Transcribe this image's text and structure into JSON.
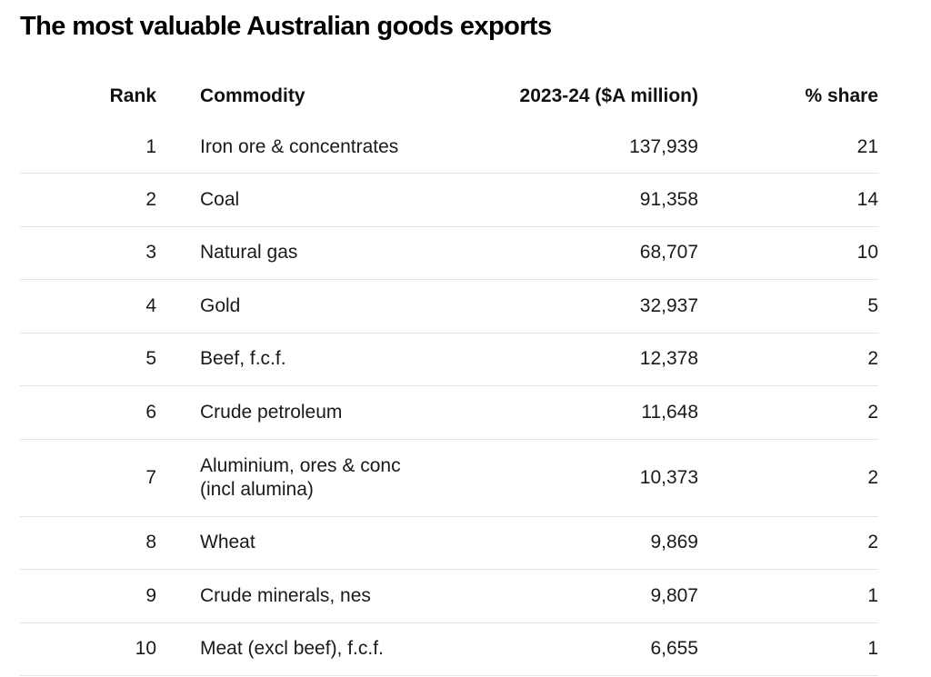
{
  "title": "The most valuable Australian goods exports",
  "headers": {
    "rank": "Rank",
    "commodity": "Commodity",
    "value": "2023-24 ($A million)",
    "share": "% share"
  },
  "rows": [
    {
      "rank": "1",
      "commodity": "Iron ore & concentrates",
      "value": "137,939",
      "share": "21"
    },
    {
      "rank": "2",
      "commodity": "Coal",
      "value": "91,358",
      "share": "14"
    },
    {
      "rank": "3",
      "commodity": "Natural gas",
      "value": "68,707",
      "share": "10"
    },
    {
      "rank": "4",
      "commodity": "Gold",
      "value": "32,937",
      "share": "5"
    },
    {
      "rank": "5",
      "commodity": "Beef, f.c.f.",
      "value": "12,378",
      "share": "2"
    },
    {
      "rank": "6",
      "commodity": "Crude petroleum",
      "value": "11,648",
      "share": "2"
    },
    {
      "rank": "7",
      "commodity_line1": "Aluminium, ores & conc",
      "commodity_line2": "(incl alumina)",
      "value": "10,373",
      "share": "2"
    },
    {
      "rank": "8",
      "commodity": "Wheat",
      "value": "9,869",
      "share": "2"
    },
    {
      "rank": "9",
      "commodity": "Crude minerals, nes",
      "value": "9,807",
      "share": "1"
    },
    {
      "rank": "10",
      "commodity": "Meat (excl beef), f.c.f.",
      "value": "6,655",
      "share": "1"
    }
  ]
}
